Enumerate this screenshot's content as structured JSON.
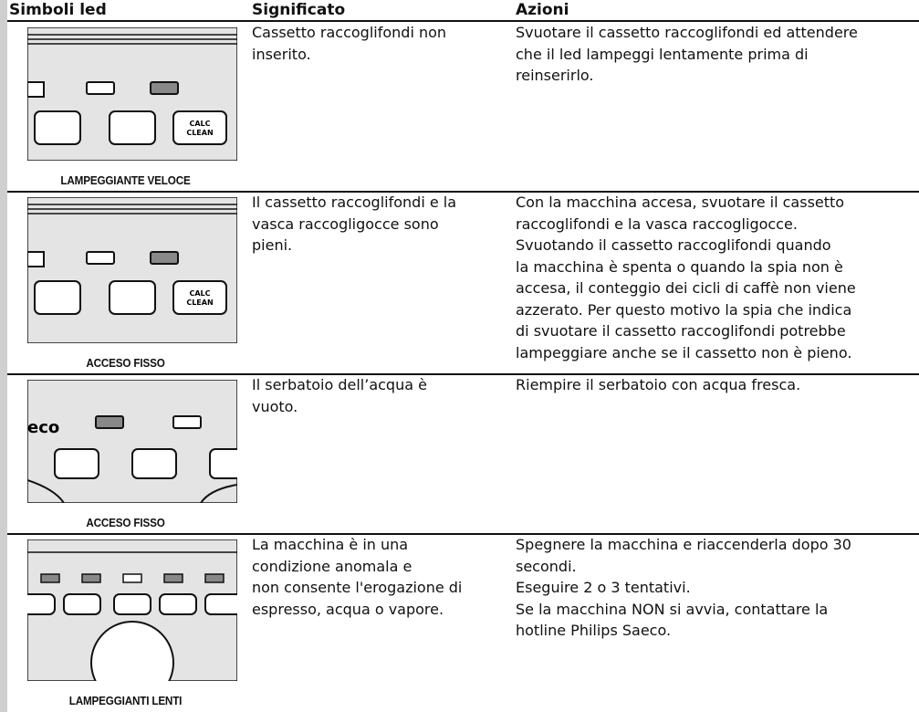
{
  "header": {
    "symbols": "Simboli led",
    "meaning": "Significato",
    "actions": "Azioni"
  },
  "rows": [
    {
      "image_texts": [
        "CALC",
        "CLEAN"
      ],
      "label": "LAMPEGGIANTE VELOCE",
      "meaning": [
        "Cassetto raccoglifondi non",
        "inserito."
      ],
      "actions": [
        "Svuotare il cassetto raccoglifondi ed attendere",
        "che il led lampeggi lentamente prima di",
        "reinserirlo."
      ]
    },
    {
      "image_texts": [
        "CALC",
        "CLEAN"
      ],
      "label": "ACCESO FISSO",
      "meaning": [
        "Il cassetto raccoglifondi e la",
        "vasca raccogligocce sono",
        "pieni."
      ],
      "actions": [
        "Con la macchina accesa, svuotare il cassetto",
        "raccoglifondi e la vasca raccogligocce.",
        "Svuotando il cassetto raccoglifondi quando",
        "la macchina è spenta o quando la spia non è",
        "accesa, il conteggio dei cicli di caffè non viene",
        "azzerato. Per questo motivo la spia che indica",
        "di svuotare il cassetto raccoglifondi potrebbe",
        "lampeggiare anche se il cassetto non è pieno."
      ]
    },
    {
      "image_texts": [
        "eco"
      ],
      "label": "ACCESO FISSO",
      "meaning": [
        "Il serbatoio dell’acqua è",
        "vuoto."
      ],
      "actions": [
        "Riempire il serbatoio con acqua fresca."
      ]
    },
    {
      "image_texts": [],
      "label": "LAMPEGGIANTI LENTI",
      "meaning": [
        "La macchina è in una",
        "condizione anomala e",
        "non consente l'erogazione di",
        "espresso, acqua o vapore."
      ],
      "actions": [
        "Spegnere la macchina e riaccenderla dopo 30",
        "secondi.",
        "Eseguire 2 o 3 tentativi.",
        "Se la macchina NON si avvia, contattare la",
        "hotline Philips Saeco."
      ]
    }
  ]
}
